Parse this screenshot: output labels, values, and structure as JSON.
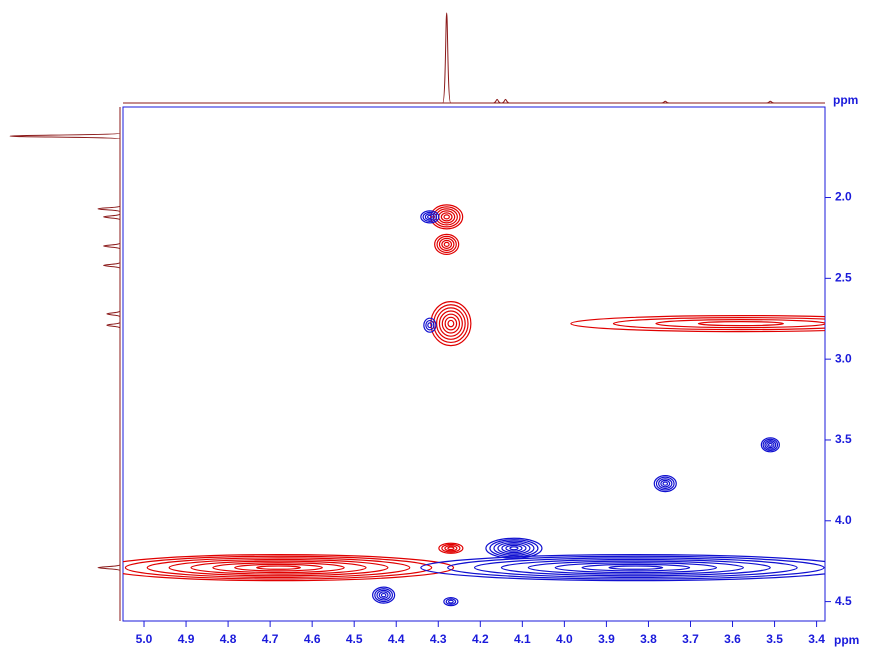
{
  "chart_data": {
    "type": "contour",
    "x_label": "ppm",
    "y_label": "ppm",
    "xlim": [
      5.05,
      3.38
    ],
    "ylim": [
      1.44,
      4.62
    ],
    "xticks": [
      {
        "value": 5,
        "label": "5.0"
      },
      4.9,
      4.8,
      4.7,
      4.6,
      4.5,
      4.4,
      4.3,
      4.2,
      4.1,
      {
        "value": 4,
        "label": "4.0"
      },
      3.9,
      3.8,
      3.7,
      3.6,
      3.5,
      3.4
    ],
    "yticks": [
      {
        "value": 2,
        "label": "2.0"
      },
      2.5,
      {
        "value": 3,
        "label": "3.0"
      },
      3.5,
      {
        "value": 4,
        "label": "4.0"
      },
      4.5
    ],
    "axis_color": "#1a1adb",
    "positive_peaks": {
      "color": "#e00000",
      "x": [
        4.28,
        4.28,
        4.27,
        3.58,
        4.68,
        4.27
      ],
      "y": [
        2.12,
        2.29,
        2.78,
        2.78,
        4.29,
        4.17
      ]
    },
    "negative_peaks": {
      "color": "#1010d0",
      "x": [
        4.32,
        4.32,
        4.12,
        3.76,
        3.51,
        4.43,
        4.27,
        3.83
      ],
      "y": [
        2.12,
        2.79,
        4.17,
        3.77,
        3.53,
        4.46,
        4.5,
        4.29
      ]
    },
    "top_projection": {
      "color": "#8b1a1a",
      "x": [
        4.28,
        4.16,
        4.14,
        3.76,
        3.51
      ],
      "intensity": [
        1,
        0.04,
        0.04,
        0.02,
        0.02
      ]
    },
    "left_projection": {
      "color": "#8b1a1a",
      "y": [
        1.62,
        2.07,
        2.12,
        2.3,
        2.42,
        2.72,
        2.79,
        4.29
      ],
      "intensity": [
        1,
        0.2,
        0.15,
        0.15,
        0.15,
        0.12,
        0.12,
        0.2
      ]
    }
  }
}
